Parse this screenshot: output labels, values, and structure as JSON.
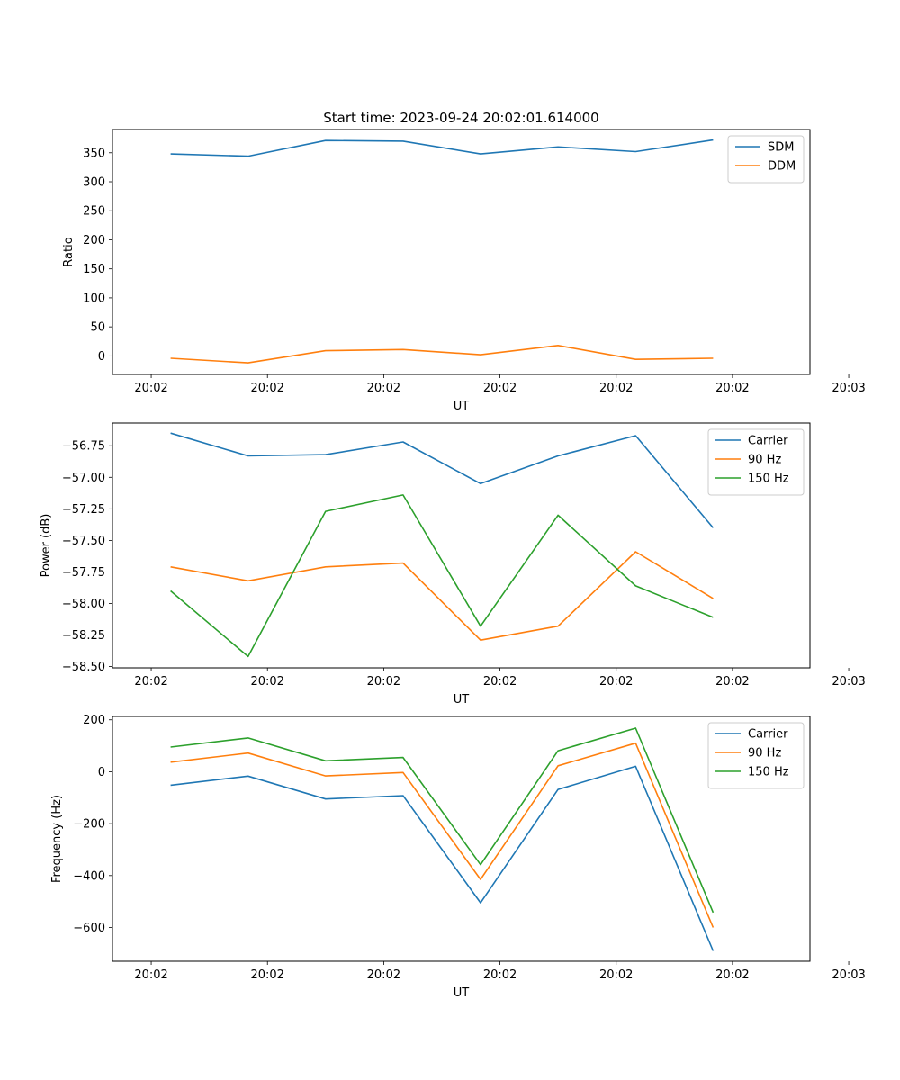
{
  "chart_data": [
    {
      "type": "line",
      "title": "Start time: 2023-09-24 20:02:01.614000",
      "xlabel": "UT",
      "ylabel": "Ratio",
      "xlim": [
        -0.5,
        8.5
      ],
      "ylim": [
        -32,
        390
      ],
      "x": [
        0.25,
        1.25,
        2.25,
        3.25,
        4.25,
        5.25,
        6.25,
        7.25
      ],
      "x_ticks": [
        0,
        1.5,
        3,
        4.5,
        6,
        7.5
      ],
      "x_ticks_extra": [
        {
          "value": 9,
          "label": "20:03"
        }
      ],
      "x_tick_labels": [
        "20:02",
        "20:02",
        "20:02",
        "20:02",
        "20:02",
        "20:02"
      ],
      "y_ticks": [
        0,
        50,
        100,
        150,
        200,
        250,
        300,
        350
      ],
      "y_tick_labels": [
        "0",
        "50",
        "100",
        "150",
        "200",
        "250",
        "300",
        "350"
      ],
      "legend_position": "top-right",
      "series": [
        {
          "name": "SDM",
          "color": "#1f77b4",
          "values": [
            348,
            344,
            371,
            370,
            348,
            360,
            352,
            372
          ]
        },
        {
          "name": "DDM",
          "color": "#ff7f0e",
          "values": [
            -4,
            -12,
            9,
            11,
            2,
            18,
            -6,
            -4
          ]
        }
      ]
    },
    {
      "type": "line",
      "title": "",
      "xlabel": "UT",
      "ylabel": "Power (dB)",
      "xlim": [
        -0.5,
        8.5
      ],
      "ylim": [
        -58.51,
        -56.57
      ],
      "x": [
        0.25,
        1.25,
        2.25,
        3.25,
        4.25,
        5.25,
        6.25,
        7.25
      ],
      "x_ticks": [
        0,
        1.5,
        3,
        4.5,
        6,
        7.5
      ],
      "x_ticks_extra": [
        {
          "value": 9,
          "label": "20:03"
        }
      ],
      "x_tick_labels": [
        "20:02",
        "20:02",
        "20:02",
        "20:02",
        "20:02",
        "20:02"
      ],
      "y_ticks": [
        -58.5,
        -58.25,
        -58.0,
        -57.75,
        -57.5,
        -57.25,
        -57.0,
        -56.75
      ],
      "y_tick_labels": [
        "−58.50",
        "−58.25",
        "−58.00",
        "−57.75",
        "−57.50",
        "−57.25",
        "−57.00",
        "−56.75"
      ],
      "legend_position": "top-right",
      "series": [
        {
          "name": "Carrier",
          "color": "#1f77b4",
          "values": [
            -56.65,
            -56.83,
            -56.82,
            -56.72,
            -57.05,
            -56.83,
            -56.67,
            -57.4
          ]
        },
        {
          "name": "90 Hz",
          "color": "#ff7f0e",
          "values": [
            -57.71,
            -57.82,
            -57.71,
            -57.68,
            -58.29,
            -58.18,
            -57.59,
            -57.96
          ]
        },
        {
          "name": "150 Hz",
          "color": "#2ca02c",
          "values": [
            -57.9,
            -58.42,
            -57.27,
            -57.14,
            -58.18,
            -57.3,
            -57.86,
            -58.11
          ]
        }
      ]
    },
    {
      "type": "line",
      "title": "",
      "xlabel": "UT",
      "ylabel": "Frequency (Hz)",
      "xlim": [
        -0.5,
        8.5
      ],
      "ylim": [
        -730,
        213
      ],
      "x": [
        0.25,
        1.25,
        2.25,
        3.25,
        4.25,
        5.25,
        6.25,
        7.25
      ],
      "x_ticks": [
        0,
        1.5,
        3,
        4.5,
        6,
        7.5
      ],
      "x_ticks_extra": [
        {
          "value": 9,
          "label": "20:03"
        }
      ],
      "x_tick_labels": [
        "20:02",
        "20:02",
        "20:02",
        "20:02",
        "20:02",
        "20:02"
      ],
      "y_ticks": [
        -600,
        -400,
        -200,
        0,
        200
      ],
      "y_tick_labels": [
        "−600",
        "−400",
        "−200",
        "0",
        "200"
      ],
      "legend_position": "top-right",
      "series": [
        {
          "name": "Carrier",
          "color": "#1f77b4",
          "values": [
            -52,
            -17,
            -105,
            -92,
            -505,
            -68,
            21,
            -690
          ]
        },
        {
          "name": "90 Hz",
          "color": "#ff7f0e",
          "values": [
            37,
            72,
            -16,
            -3,
            -415,
            23,
            110,
            -600
          ]
        },
        {
          "name": "150 Hz",
          "color": "#2ca02c",
          "values": [
            95,
            130,
            42,
            55,
            -358,
            81,
            168,
            -542
          ]
        }
      ]
    }
  ]
}
